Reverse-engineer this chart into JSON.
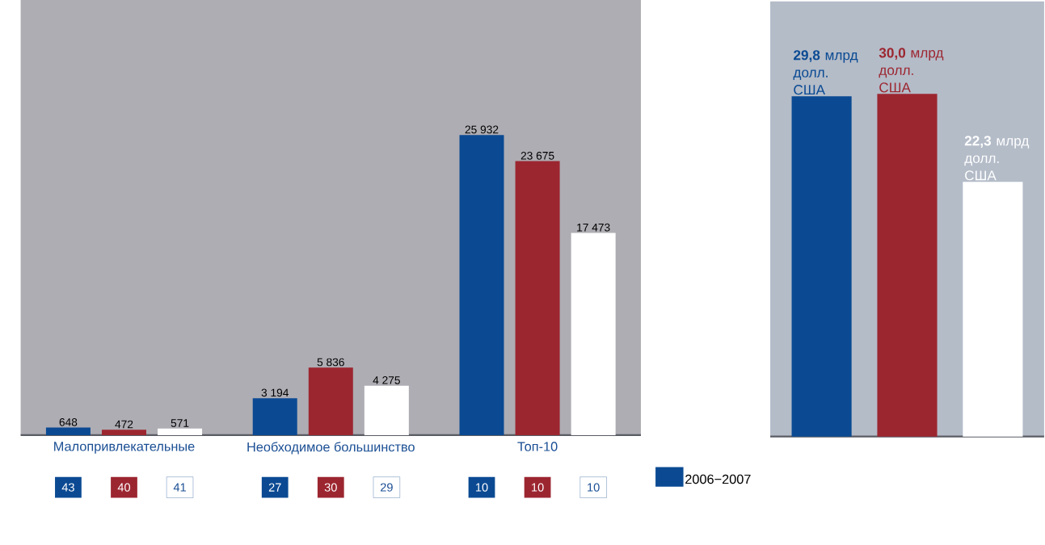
{
  "chart_data": [
    {
      "type": "bar",
      "categories": [
        "Малопривлекательные",
        "Необходимое большинство",
        "Топ-10"
      ],
      "series": [
        {
          "name": "2006−2007",
          "color": "#0b4a93",
          "values": [
            648,
            3194,
            25932
          ],
          "value_labels": [
            "648",
            "3 194",
            "25 932"
          ]
        },
        {
          "color": "#9c2630",
          "values": [
            472,
            5836,
            23675
          ],
          "value_labels": [
            "472",
            "5 836",
            "23 675"
          ]
        },
        {
          "color": "#ffffff",
          "values": [
            571,
            4275,
            17473
          ],
          "value_labels": [
            "571",
            "4 275",
            "17 473"
          ]
        }
      ],
      "annotations": [
        "43",
        "40",
        "41",
        "27",
        "30",
        "29",
        "10",
        "10",
        "10"
      ],
      "legend": "bottom right",
      "tick_labels": "x"
    },
    {
      "type": "bar",
      "categories": [
        null,
        null,
        null
      ],
      "values": [
        29.8,
        30.0,
        22.3
      ],
      "colors": [
        "#0b4a93",
        "#9c2630",
        "#ffffff"
      ],
      "value_labels": [
        "**29,8** млрд долл. США",
        "**30,0** млрд долл. США",
        "**22,3** млрд долл. США"
      ],
      "tick_labels": false
    }
  ]
}
